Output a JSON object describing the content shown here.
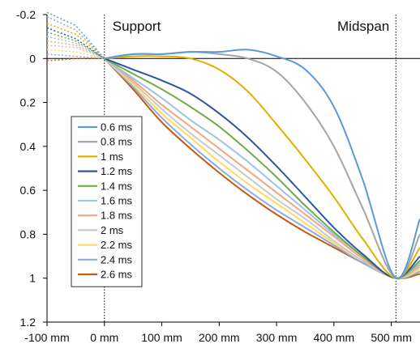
{
  "chart_data": {
    "type": "line",
    "title": "",
    "xlabel": "",
    "ylabel": "",
    "x_unit": "mm",
    "xlim": [
      -100,
      550
    ],
    "ylim": [
      1.2,
      -0.2
    ],
    "y_inverted": true,
    "x_ticks": [
      {
        "value": -100,
        "label": "-100 mm"
      },
      {
        "value": 0,
        "label": "0 mm"
      },
      {
        "value": 100,
        "label": "100 mm"
      },
      {
        "value": 200,
        "label": "200 mm"
      },
      {
        "value": 300,
        "label": "300 mm"
      },
      {
        "value": 400,
        "label": "400 mm"
      },
      {
        "value": 500,
        "label": "500 mm"
      }
    ],
    "y_ticks": [
      {
        "value": -0.2,
        "label": "-0.2"
      },
      {
        "value": 0,
        "label": "0"
      },
      {
        "value": 0.2,
        "label": "0.2"
      },
      {
        "value": 0.4,
        "label": "0.4"
      },
      {
        "value": 0.6,
        "label": "0.6"
      },
      {
        "value": 0.8,
        "label": "0.8"
      },
      {
        "value": 1,
        "label": "1"
      },
      {
        "value": 1.2,
        "label": "1.2"
      }
    ],
    "grid": false,
    "legend_position": "left",
    "annotations": [
      {
        "label": "Support",
        "x": 0
      },
      {
        "label": "Midspan",
        "x": 508
      }
    ],
    "series": [
      {
        "name": "0.6 ms",
        "color": "#5b9bd5",
        "x": [
          0,
          50,
          100,
          150,
          200,
          250,
          300,
          350,
          400,
          450,
          508,
          550
        ],
        "y": [
          0,
          -0.02,
          -0.02,
          -0.03,
          -0.03,
          -0.04,
          -0.01,
          0.05,
          0.22,
          0.55,
          1.0,
          0.73
        ],
        "extension_x": [
          -100,
          -50,
          0
        ],
        "extension_y": [
          -0.21,
          -0.15,
          0
        ]
      },
      {
        "name": "0.8 ms",
        "color": "#a5a5a5",
        "x": [
          0,
          50,
          100,
          150,
          200,
          250,
          300,
          350,
          400,
          450,
          508,
          550
        ],
        "y": [
          0,
          -0.02,
          -0.02,
          -0.03,
          -0.02,
          0.0,
          0.06,
          0.2,
          0.4,
          0.68,
          1.0,
          0.8
        ],
        "extension_x": [
          -100,
          -50,
          0
        ],
        "extension_y": [
          -0.19,
          -0.13,
          0
        ]
      },
      {
        "name": "1 ms",
        "color": "#e0b000",
        "x": [
          0,
          50,
          100,
          150,
          200,
          250,
          300,
          350,
          400,
          450,
          508,
          550
        ],
        "y": [
          0,
          -0.01,
          -0.01,
          0.0,
          0.05,
          0.15,
          0.3,
          0.46,
          0.63,
          0.82,
          1.0,
          0.86
        ],
        "extension_x": [
          -100,
          -50,
          0
        ],
        "extension_y": [
          -0.16,
          -0.11,
          0
        ]
      },
      {
        "name": "1.2 ms",
        "color": "#2f55a4",
        "x": [
          0,
          50,
          100,
          150,
          200,
          250,
          300,
          350,
          400,
          450,
          508,
          550
        ],
        "y": [
          0,
          0.05,
          0.1,
          0.16,
          0.25,
          0.36,
          0.49,
          0.63,
          0.77,
          0.89,
          1.0,
          0.9
        ],
        "extension_x": [
          -100,
          -50,
          0
        ],
        "extension_y": [
          -0.14,
          -0.09,
          0
        ]
      },
      {
        "name": "1.4 ms",
        "color": "#70ad47",
        "x": [
          0,
          50,
          100,
          150,
          200,
          250,
          300,
          350,
          400,
          450,
          508,
          550
        ],
        "y": [
          0,
          0.07,
          0.14,
          0.22,
          0.31,
          0.42,
          0.54,
          0.67,
          0.79,
          0.9,
          1.0,
          0.92
        ],
        "extension_x": [
          -100,
          -50,
          0
        ],
        "extension_y": [
          -0.12,
          -0.08,
          0
        ]
      },
      {
        "name": "1.6 ms",
        "color": "#9dc3e6",
        "x": [
          0,
          50,
          100,
          150,
          200,
          250,
          300,
          350,
          400,
          450,
          508,
          550
        ],
        "y": [
          0,
          0.09,
          0.18,
          0.28,
          0.37,
          0.47,
          0.58,
          0.69,
          0.8,
          0.9,
          1.0,
          0.93
        ],
        "extension_x": [
          -100,
          -50,
          0
        ],
        "extension_y": [
          -0.1,
          -0.07,
          0
        ]
      },
      {
        "name": "1.8 ms",
        "color": "#f4a582",
        "x": [
          0,
          50,
          100,
          150,
          200,
          250,
          300,
          350,
          400,
          450,
          508,
          550
        ],
        "y": [
          0,
          0.1,
          0.21,
          0.31,
          0.41,
          0.51,
          0.61,
          0.71,
          0.81,
          0.91,
          1.0,
          0.94
        ],
        "extension_x": [
          -100,
          -50,
          0
        ],
        "extension_y": [
          -0.08,
          -0.06,
          0
        ]
      },
      {
        "name": "2 ms",
        "color": "#c9c9c9",
        "x": [
          0,
          50,
          100,
          150,
          200,
          250,
          300,
          350,
          400,
          450,
          508,
          550
        ],
        "y": [
          0,
          0.11,
          0.23,
          0.34,
          0.44,
          0.54,
          0.64,
          0.73,
          0.83,
          0.92,
          1.0,
          0.95
        ],
        "extension_x": [
          -100,
          -50,
          0
        ],
        "extension_y": [
          -0.06,
          -0.05,
          0
        ]
      },
      {
        "name": "2.2 ms",
        "color": "#ffd966",
        "x": [
          0,
          50,
          100,
          150,
          200,
          250,
          300,
          350,
          400,
          450,
          508,
          550
        ],
        "y": [
          0,
          0.12,
          0.25,
          0.36,
          0.47,
          0.57,
          0.66,
          0.75,
          0.84,
          0.92,
          1.0,
          0.96
        ],
        "extension_x": [
          -100,
          -50,
          0
        ],
        "extension_y": [
          -0.04,
          -0.03,
          0
        ]
      },
      {
        "name": "2.4 ms",
        "color": "#8faadc",
        "x": [
          0,
          50,
          100,
          150,
          200,
          250,
          300,
          350,
          400,
          450,
          508,
          550
        ],
        "y": [
          0,
          0.13,
          0.27,
          0.39,
          0.5,
          0.6,
          0.69,
          0.77,
          0.85,
          0.93,
          1.0,
          0.97
        ],
        "extension_x": [
          -100,
          -50,
          0
        ],
        "extension_y": [
          -0.02,
          -0.01,
          0
        ]
      },
      {
        "name": "2.6 ms",
        "color": "#c55a11",
        "x": [
          0,
          50,
          100,
          150,
          200,
          250,
          300,
          350,
          400,
          450,
          508,
          550
        ],
        "y": [
          0,
          0.14,
          0.29,
          0.41,
          0.52,
          0.62,
          0.71,
          0.79,
          0.86,
          0.93,
          1.0,
          0.98
        ],
        "extension_x": [
          -100,
          -50,
          0
        ],
        "extension_y": [
          0.01,
          0.0,
          0
        ]
      }
    ]
  }
}
